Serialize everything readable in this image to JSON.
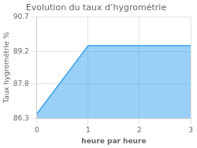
{
  "chart_data": {
    "type": "area",
    "title": "Evolution du taux d’hygrométrie",
    "xlabel": "heure par heure",
    "ylabel": "Taux hygrométrie %",
    "x": [
      0,
      1,
      2,
      3
    ],
    "values": [
      86.5,
      89.45,
      89.45,
      89.45
    ],
    "xlim": [
      0,
      3
    ],
    "ylim": [
      86.3,
      90.7
    ],
    "xticks": [
      0,
      1,
      2,
      3
    ],
    "yticks": [
      86.3,
      87.8,
      89.2,
      90.7
    ],
    "grid": true
  }
}
